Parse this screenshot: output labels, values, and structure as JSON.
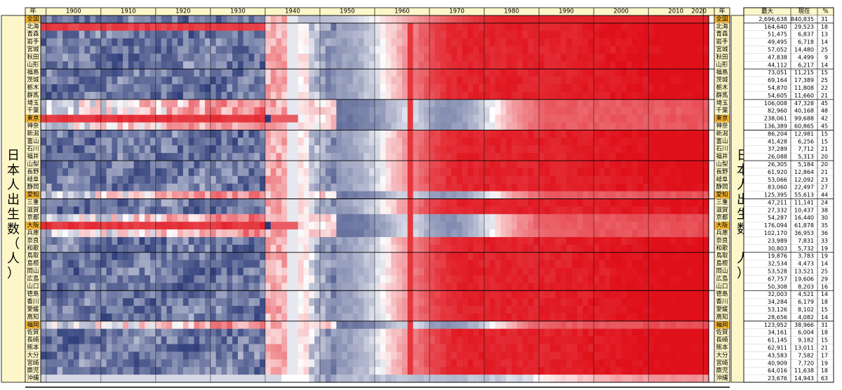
{
  "chart_data": {
    "type": "heatmap",
    "title": "",
    "year_label": "年",
    "side_label": "日本人出生数（人）",
    "x_ticks": [
      1900,
      1910,
      1920,
      1930,
      1940,
      1950,
      1960,
      1970,
      1980,
      1990,
      2000,
      2010,
      2020
    ],
    "x_range": [
      1899,
      2020
    ],
    "stats_headers": [
      "最大",
      "現在",
      "%"
    ],
    "color_scale": {
      "low": "#1a2a6c",
      "mid": "#ffffff",
      "high": "#e0101a"
    },
    "rows": [
      {
        "name": "全国",
        "max": "2,696,638",
        "now": "840,835",
        "pct": "31",
        "hl": true
      },
      {
        "name": "北海",
        "max": "164,640",
        "now": "29,523",
        "pct": "18"
      },
      {
        "name": "青森",
        "max": "51,475",
        "now": "6,837",
        "pct": "13"
      },
      {
        "name": "岩手",
        "max": "49,495",
        "now": "6,718",
        "pct": "14"
      },
      {
        "name": "宮城",
        "max": "57,052",
        "now": "14,480",
        "pct": "25"
      },
      {
        "name": "秋田",
        "max": "47,838",
        "now": "4,499",
        "pct": "9"
      },
      {
        "name": "山形",
        "max": "44,112",
        "now": "6,217",
        "pct": "14"
      },
      {
        "name": "福島",
        "max": "73,051",
        "now": "11,215",
        "pct": "15"
      },
      {
        "name": "茨城",
        "max": "69,164",
        "now": "17,389",
        "pct": "25"
      },
      {
        "name": "栃木",
        "max": "54,870",
        "now": "11,808",
        "pct": "22"
      },
      {
        "name": "群馬",
        "max": "54,605",
        "now": "11,660",
        "pct": "21"
      },
      {
        "name": "埼玉",
        "max": "106,008",
        "now": "47,328",
        "pct": "45"
      },
      {
        "name": "千葉",
        "max": "82,960",
        "now": "40,168",
        "pct": "48"
      },
      {
        "name": "東京",
        "max": "238,061",
        "now": "99,688",
        "pct": "42",
        "hl": true
      },
      {
        "name": "神奈",
        "max": "136,389",
        "now": "60,865",
        "pct": "45"
      },
      {
        "name": "新潟",
        "max": "86,204",
        "now": "12,981",
        "pct": "15"
      },
      {
        "name": "富山",
        "max": "41,428",
        "now": "6,256",
        "pct": "15"
      },
      {
        "name": "石川",
        "max": "37,289",
        "now": "7,712",
        "pct": "21"
      },
      {
        "name": "福井",
        "max": "26,088",
        "now": "5,313",
        "pct": "20"
      },
      {
        "name": "山梨",
        "max": "26,305",
        "now": "5,184",
        "pct": "20"
      },
      {
        "name": "長野",
        "max": "61,920",
        "now": "12,864",
        "pct": "21"
      },
      {
        "name": "岐阜",
        "max": "53,066",
        "now": "12,092",
        "pct": "23"
      },
      {
        "name": "静岡",
        "max": "83,060",
        "now": "22,497",
        "pct": "27"
      },
      {
        "name": "愛知",
        "max": "125,395",
        "now": "55,613",
        "pct": "44",
        "hl": true
      },
      {
        "name": "三重",
        "max": "47,211",
        "now": "11,141",
        "pct": "24"
      },
      {
        "name": "滋賀",
        "max": "27,332",
        "now": "10,437",
        "pct": "38"
      },
      {
        "name": "京都",
        "max": "54,287",
        "now": "16,440",
        "pct": "30"
      },
      {
        "name": "大阪",
        "max": "176,094",
        "now": "61,878",
        "pct": "35",
        "hl": true
      },
      {
        "name": "兵庫",
        "max": "102,170",
        "now": "36,953",
        "pct": "36"
      },
      {
        "name": "奈良",
        "max": "23,989",
        "now": "7,831",
        "pct": "33"
      },
      {
        "name": "和歌",
        "max": "30,803",
        "now": "5,732",
        "pct": "19"
      },
      {
        "name": "鳥取",
        "max": "19,876",
        "now": "3,783",
        "pct": "19"
      },
      {
        "name": "島根",
        "max": "32,534",
        "now": "4,473",
        "pct": "14"
      },
      {
        "name": "岡山",
        "max": "53,528",
        "now": "13,521",
        "pct": "25"
      },
      {
        "name": "広島",
        "max": "67,757",
        "now": "19,606",
        "pct": "29"
      },
      {
        "name": "山口",
        "max": "50,308",
        "now": "8,203",
        "pct": "16"
      },
      {
        "name": "徳島",
        "max": "32,003",
        "now": "4,521",
        "pct": "14"
      },
      {
        "name": "香川",
        "max": "34,284",
        "now": "6,179",
        "pct": "18"
      },
      {
        "name": "愛媛",
        "max": "53,126",
        "now": "8,102",
        "pct": "15"
      },
      {
        "name": "高知",
        "max": "28,656",
        "now": "4,082",
        "pct": "14"
      },
      {
        "name": "福岡",
        "max": "123,952",
        "now": "38,966",
        "pct": "31",
        "hl": true
      },
      {
        "name": "佐賀",
        "max": "34,161",
        "now": "6,004",
        "pct": "18"
      },
      {
        "name": "長崎",
        "max": "61,145",
        "now": "9,182",
        "pct": "15"
      },
      {
        "name": "熊本",
        "max": "62,911",
        "now": "13,011",
        "pct": "21"
      },
      {
        "name": "大分",
        "max": "43,583",
        "now": "7,582",
        "pct": "17"
      },
      {
        "name": "宮崎",
        "max": "40,909",
        "now": "7,720",
        "pct": "19"
      },
      {
        "name": "鹿児",
        "max": "64,016",
        "now": "11,638",
        "pct": "18"
      },
      {
        "name": "沖縄",
        "max": "23,676",
        "now": "14,943",
        "pct": "63"
      }
    ],
    "groups": [
      [
        0,
        0
      ],
      [
        1,
        6
      ],
      [
        7,
        10
      ],
      [
        11,
        14
      ],
      [
        15,
        18
      ],
      [
        19,
        23
      ],
      [
        24,
        30
      ],
      [
        31,
        35
      ],
      [
        36,
        39
      ],
      [
        40,
        47
      ]
    ]
  }
}
